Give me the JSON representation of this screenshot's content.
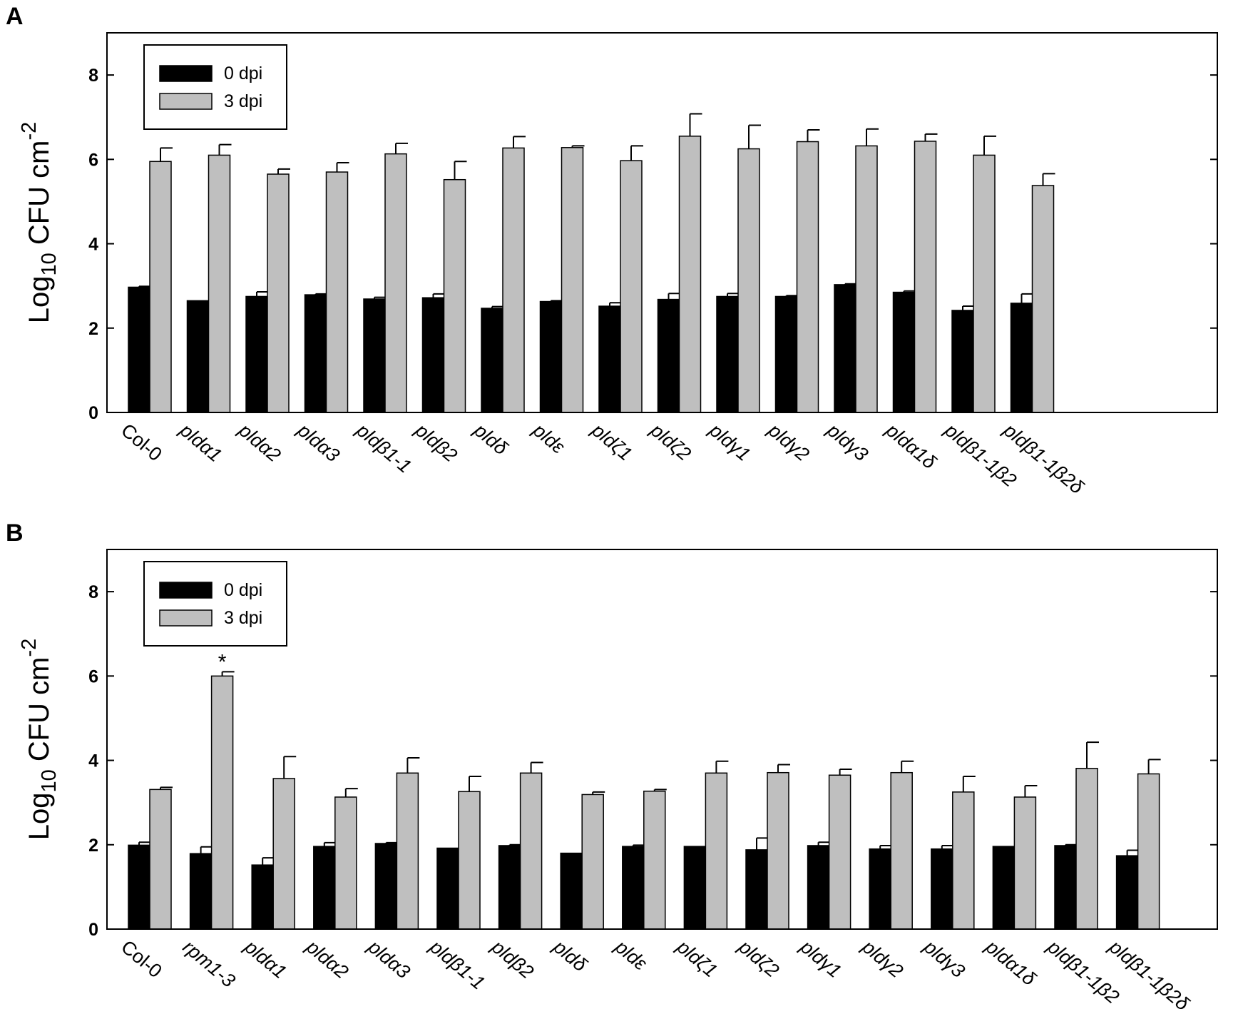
{
  "chart_data": [
    {
      "type": "bar",
      "panel": "A",
      "ylabel": "Log10 CFU cm-2",
      "ylabel_parts": {
        "base": "Log",
        "sub": "10",
        "mid": " CFU cm",
        "sup": "-2"
      },
      "ylim": [
        0,
        9
      ],
      "yticks": [
        0,
        2,
        4,
        6,
        8
      ],
      "legend_placement": "top-left",
      "grid": false,
      "categories": [
        "Col-0",
        "pldα1",
        "pldα2",
        "pldα3",
        "pldβ1-1",
        "pldβ2",
        "pldδ",
        "pldε",
        "pldζ1",
        "pldζ2",
        "pldγ1",
        "pldγ2",
        "pldγ3",
        "pldα1δ",
        "pldβ1-1β2",
        "pldβ1-1β2δ"
      ],
      "series": [
        {
          "name": "0 dpi",
          "color": "#000000",
          "values": [
            2.97,
            2.65,
            2.75,
            2.79,
            2.69,
            2.72,
            2.47,
            2.63,
            2.52,
            2.68,
            2.75,
            2.75,
            3.03,
            2.85,
            2.42,
            2.59
          ],
          "errors": [
            0.02,
            0.0,
            0.11,
            0.02,
            0.04,
            0.09,
            0.04,
            0.02,
            0.08,
            0.14,
            0.07,
            0.02,
            0.02,
            0.03,
            0.1,
            0.22
          ]
        },
        {
          "name": "3 dpi",
          "color": "#bfbfbf",
          "values": [
            5.95,
            6.1,
            5.65,
            5.7,
            6.13,
            5.52,
            6.27,
            6.28,
            5.97,
            6.55,
            6.25,
            6.42,
            6.32,
            6.43,
            6.1,
            5.38
          ],
          "errors": [
            0.32,
            0.25,
            0.12,
            0.22,
            0.25,
            0.43,
            0.27,
            0.04,
            0.35,
            0.53,
            0.56,
            0.28,
            0.4,
            0.17,
            0.45,
            0.28
          ]
        }
      ],
      "annotations": []
    },
    {
      "type": "bar",
      "panel": "B",
      "ylabel": "Log10 CFU cm-2",
      "ylabel_parts": {
        "base": "Log",
        "sub": "10",
        "mid": " CFU cm",
        "sup": "-2"
      },
      "ylim": [
        0,
        9
      ],
      "yticks": [
        0,
        2,
        4,
        6,
        8
      ],
      "legend_placement": "top-left",
      "grid": false,
      "categories": [
        "Col-0",
        "rpm1-3",
        "pldα1",
        "pldα2",
        "pldα3",
        "pldβ1-1",
        "pldβ2",
        "pldδ",
        "pldε",
        "pldζ1",
        "pldζ2",
        "pldγ1",
        "pldγ2",
        "pldγ3",
        "pldα1δ",
        "pldβ1-1β2",
        "pldβ1-1β2δ"
      ],
      "series": [
        {
          "name": "0 dpi",
          "color": "#000000",
          "values": [
            1.99,
            1.79,
            1.52,
            1.96,
            2.03,
            1.92,
            1.98,
            1.8,
            1.96,
            1.96,
            1.88,
            1.98,
            1.9,
            1.9,
            1.96,
            1.98,
            1.74
          ],
          "errors": [
            0.07,
            0.16,
            0.17,
            0.09,
            0.02,
            0.0,
            0.02,
            0.0,
            0.03,
            0.0,
            0.28,
            0.08,
            0.08,
            0.08,
            0.0,
            0.02,
            0.13
          ]
        },
        {
          "name": "3 dpi",
          "color": "#bfbfbf",
          "values": [
            3.31,
            6.0,
            3.57,
            3.13,
            3.7,
            3.26,
            3.7,
            3.19,
            3.27,
            3.7,
            3.71,
            3.65,
            3.71,
            3.25,
            3.13,
            3.81,
            3.68
          ],
          "errors": [
            0.05,
            0.1,
            0.52,
            0.2,
            0.36,
            0.36,
            0.25,
            0.06,
            0.04,
            0.28,
            0.19,
            0.14,
            0.27,
            0.37,
            0.27,
            0.62,
            0.34
          ]
        }
      ],
      "annotations": [
        {
          "text": "*",
          "category": "rpm1-3",
          "series": "3 dpi"
        }
      ]
    }
  ]
}
